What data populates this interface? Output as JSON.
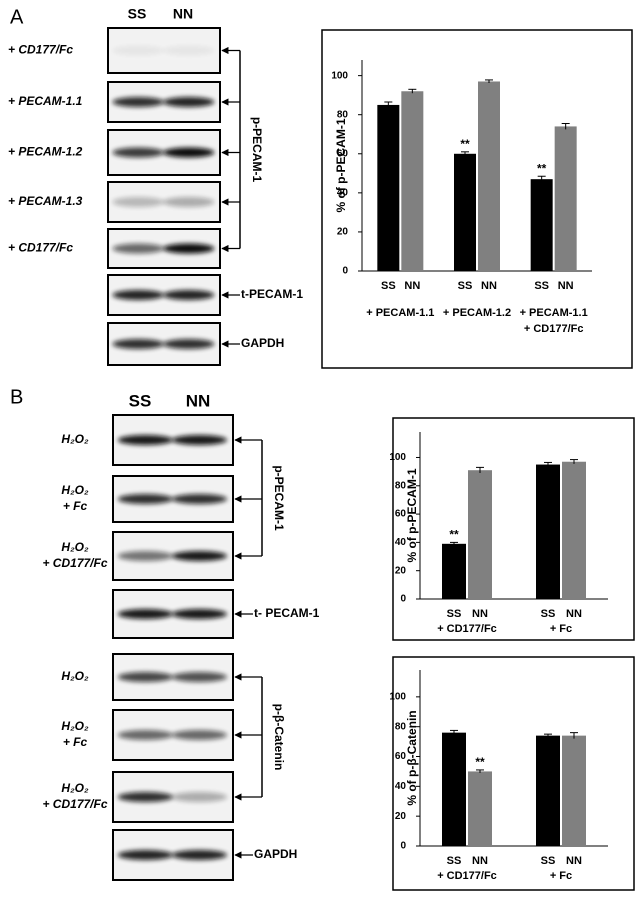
{
  "figure": {
    "panels": [
      {
        "label": "A",
        "lanes": [
          "SS",
          "NN"
        ],
        "blots": [
          {
            "label": [
              "+ CD177/Fc"
            ]
          },
          {
            "label": [
              "+ PECAM-1.1"
            ]
          },
          {
            "label": [
              "+ PECAM-1.2"
            ]
          },
          {
            "label": [
              "+ PECAM-1.3"
            ]
          },
          {
            "label": [
              "+ CD177/Fc"
            ]
          },
          {
            "marker": "t-PECAM-1"
          },
          {
            "marker": "GAPDH"
          }
        ],
        "brackets": [
          {
            "label": "p-PECAM-1"
          }
        ]
      },
      {
        "label": "B",
        "lanes": [
          "SS",
          "NN"
        ],
        "blots": [
          {
            "label": [
              "H₂O₂"
            ]
          },
          {
            "label": [
              "H₂O₂",
              "+ Fc"
            ]
          },
          {
            "label": [
              "H₂O₂",
              "+ CD177/Fc"
            ]
          },
          {
            "marker": "t- PECAM-1"
          },
          {
            "label": [
              "H₂O₂"
            ]
          },
          {
            "label": [
              "H₂O₂",
              "+ Fc"
            ]
          },
          {
            "label": [
              "H₂O₂",
              "+ CD177/Fc"
            ]
          },
          {
            "marker": "GAPDH"
          }
        ],
        "brackets": [
          {
            "label": "p-PECAM-1"
          },
          {
            "label": "p-β-Catenin"
          }
        ]
      }
    ]
  },
  "chart_data": [
    {
      "type": "bar",
      "y_label": "% of p-PECAM-1",
      "categories": [
        "+ PECAM-1.1",
        "+ PECAM-1.2",
        "+ PECAM-1.1\n+ CD177/Fc"
      ],
      "series": [
        {
          "name": "SS",
          "color": "#000000",
          "values": [
            85,
            60,
            47
          ],
          "errors": [
            1.5,
            1,
            1.5
          ],
          "annotations": [
            null,
            "**",
            "**"
          ]
        },
        {
          "name": "NN",
          "color": "#808080",
          "values": [
            92,
            97,
            74
          ],
          "errors": [
            1,
            0.8,
            1.5
          ],
          "annotations": [
            null,
            null,
            null
          ]
        }
      ],
      "ylim": [
        0,
        108
      ],
      "yticks": [
        0,
        20,
        40,
        60,
        80,
        100
      ]
    },
    {
      "type": "bar",
      "y_label": "% of p-PECAM-1",
      "categories": [
        "+ CD177/Fc",
        "+ Fc"
      ],
      "series": [
        {
          "name": "SS",
          "color": "#000000",
          "values": [
            39,
            95
          ],
          "errors": [
            1,
            1.5
          ],
          "annotations": [
            "**",
            null
          ]
        },
        {
          "name": "NN",
          "color": "#808080",
          "values": [
            91,
            97
          ],
          "errors": [
            2,
            1.5
          ],
          "annotations": [
            null,
            null
          ]
        }
      ],
      "ylim": [
        0,
        118
      ],
      "yticks": [
        0,
        20,
        40,
        60,
        80,
        100
      ]
    },
    {
      "type": "bar",
      "y_label": "% of p-β-Catenin",
      "categories": [
        "+ CD177/Fc",
        "+ Fc"
      ],
      "series": [
        {
          "name": "SS",
          "color": "#000000",
          "values": [
            76,
            74
          ],
          "errors": [
            1.5,
            1
          ],
          "annotations": [
            null,
            null
          ]
        },
        {
          "name": "NN",
          "color": "#808080",
          "values": [
            50,
            74
          ],
          "errors": [
            1,
            2
          ],
          "annotations": [
            "**",
            null
          ]
        }
      ],
      "ylim": [
        0,
        118
      ],
      "yticks": [
        0,
        20,
        40,
        60,
        80,
        100
      ]
    }
  ]
}
